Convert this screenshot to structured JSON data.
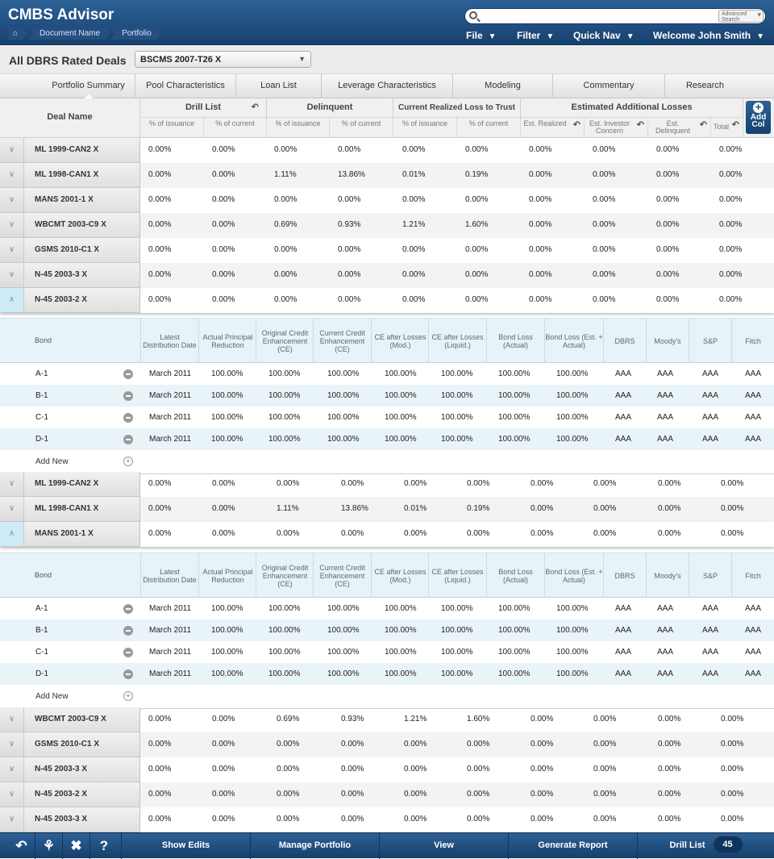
{
  "app": {
    "title": "CMBS Advisor"
  },
  "breadcrumbs": [
    "Document Name",
    "Portfolio"
  ],
  "search": {
    "placeholder": "",
    "advanced": "Advanced Search"
  },
  "menu": {
    "file": "File",
    "filter": "Filter",
    "quicknav": "Quick Nav",
    "welcome": "Welcome John Smith"
  },
  "deal": {
    "label": "All DBRS Rated Deals",
    "selected": "BSCMS 2007-T26 X"
  },
  "tabs": [
    "Portfolio Summary",
    "Pool Characteristics",
    "Loan List",
    "Leverage Characteristics",
    "Modeling",
    "Commentary",
    "Research"
  ],
  "grid": {
    "deal_name": "Deal Name",
    "groups": [
      "Drill List",
      "Delinquent",
      "Current Realized Loss to Trust",
      "Estimated Additional Losses"
    ],
    "subs": [
      "% of issuance",
      "% of current",
      "% of issuance",
      "% of current",
      "% of issuance",
      "% of current",
      "Est. Realized",
      "Est. Investor Concern",
      "Est. Delinquent",
      "Total"
    ],
    "add_col": "Add Col"
  },
  "bond_headers": {
    "bond": "Bond",
    "cols": [
      "Latest Distribution Date",
      "Actual Principal Reduction",
      "Original Credit Enhancement (CE)",
      "Current Credit Enhancement (CE)",
      "CE after Losses (Mod.)",
      "CE after Losses (Liquid.)",
      "Bond Loss (Actual)",
      "Bond Loss (Est. + Actual)",
      "DBRS",
      "Moody's",
      "S&P",
      "Fitch"
    ]
  },
  "deals_block1": [
    {
      "name": "ML 1999-CAN2 X",
      "v": [
        "0.00%",
        "0.00%",
        "0.00%",
        "0.00%",
        "0.00%",
        "0.00%",
        "0.00%",
        "0.00%",
        "0.00%",
        "0.00%"
      ]
    },
    {
      "name": "ML 1998-CAN1 X",
      "v": [
        "0.00%",
        "0.00%",
        "1.11%",
        "13.86%",
        "0.01%",
        "0.19%",
        "0.00%",
        "0.00%",
        "0.00%",
        "0.00%"
      ]
    },
    {
      "name": "MANS 2001-1 X",
      "v": [
        "0.00%",
        "0.00%",
        "0.00%",
        "0.00%",
        "0.00%",
        "0.00%",
        "0.00%",
        "0.00%",
        "0.00%",
        "0.00%"
      ]
    },
    {
      "name": "WBCMT 2003-C9 X",
      "v": [
        "0.00%",
        "0.00%",
        "0.69%",
        "0.93%",
        "1.21%",
        "1.60%",
        "0.00%",
        "0.00%",
        "0.00%",
        "0.00%"
      ]
    },
    {
      "name": "GSMS 2010-C1 X",
      "v": [
        "0.00%",
        "0.00%",
        "0.00%",
        "0.00%",
        "0.00%",
        "0.00%",
        "0.00%",
        "0.00%",
        "0.00%",
        "0.00%"
      ]
    },
    {
      "name": "N-45 2003-3 X",
      "v": [
        "0.00%",
        "0.00%",
        "0.00%",
        "0.00%",
        "0.00%",
        "0.00%",
        "0.00%",
        "0.00%",
        "0.00%",
        "0.00%"
      ]
    },
    {
      "name": "N-45 2003-2 X",
      "v": [
        "0.00%",
        "0.00%",
        "0.00%",
        "0.00%",
        "0.00%",
        "0.00%",
        "0.00%",
        "0.00%",
        "0.00%",
        "0.00%"
      ]
    }
  ],
  "bonds1": [
    {
      "name": "A-1",
      "v": [
        "March 2011",
        "100.00%",
        "100.00%",
        "100.00%",
        "100.00%",
        "100.00%",
        "100.00%",
        "100.00%",
        "AAA",
        "AAA",
        "AAA",
        "AAA"
      ]
    },
    {
      "name": "B-1",
      "v": [
        "March 2011",
        "100.00%",
        "100.00%",
        "100.00%",
        "100.00%",
        "100.00%",
        "100.00%",
        "100.00%",
        "AAA",
        "AAA",
        "AAA",
        "AAA"
      ]
    },
    {
      "name": "C-1",
      "v": [
        "March 2011",
        "100.00%",
        "100.00%",
        "100.00%",
        "100.00%",
        "100.00%",
        "100.00%",
        "100.00%",
        "AAA",
        "AAA",
        "AAA",
        "AAA"
      ]
    },
    {
      "name": "D-1",
      "v": [
        "March 2011",
        "100.00%",
        "100.00%",
        "100.00%",
        "100.00%",
        "100.00%",
        "100.00%",
        "100.00%",
        "AAA",
        "AAA",
        "AAA",
        "AAA"
      ]
    }
  ],
  "add_new": "Add New",
  "deals_block2": [
    {
      "name": "ML 1999-CAN2 X",
      "v": [
        "0.00%",
        "0.00%",
        "0.00%",
        "0.00%",
        "0.00%",
        "0.00%",
        "0.00%",
        "0.00%",
        "0.00%",
        "0.00%"
      ]
    },
    {
      "name": "ML 1998-CAN1 X",
      "v": [
        "0.00%",
        "0.00%",
        "1.11%",
        "13.86%",
        "0.01%",
        "0.19%",
        "0.00%",
        "0.00%",
        "0.00%",
        "0.00%"
      ]
    },
    {
      "name": "MANS 2001-1 X",
      "v": [
        "0.00%",
        "0.00%",
        "0.00%",
        "0.00%",
        "0.00%",
        "0.00%",
        "0.00%",
        "0.00%",
        "0.00%",
        "0.00%"
      ]
    }
  ],
  "bonds2": [
    {
      "name": "A-1",
      "v": [
        "March 2011",
        "100.00%",
        "100.00%",
        "100.00%",
        "100.00%",
        "100.00%",
        "100.00%",
        "100.00%",
        "AAA",
        "AAA",
        "AAA",
        "AAA"
      ]
    },
    {
      "name": "B-1",
      "v": [
        "March 2011",
        "100.00%",
        "100.00%",
        "100.00%",
        "100.00%",
        "100.00%",
        "100.00%",
        "100.00%",
        "AAA",
        "AAA",
        "AAA",
        "AAA"
      ]
    },
    {
      "name": "C-1",
      "v": [
        "March 2011",
        "100.00%",
        "100.00%",
        "100.00%",
        "100.00%",
        "100.00%",
        "100.00%",
        "100.00%",
        "AAA",
        "AAA",
        "AAA",
        "AAA"
      ]
    },
    {
      "name": "D-1",
      "v": [
        "March 2011",
        "100.00%",
        "100.00%",
        "100.00%",
        "100.00%",
        "100.00%",
        "100.00%",
        "100.00%",
        "AAA",
        "AAA",
        "AAA",
        "AAA"
      ]
    }
  ],
  "deals_block3": [
    {
      "name": "WBCMT 2003-C9 X",
      "v": [
        "0.00%",
        "0.00%",
        "0.69%",
        "0.93%",
        "1.21%",
        "1.60%",
        "0.00%",
        "0.00%",
        "0.00%",
        "0.00%"
      ]
    },
    {
      "name": "GSMS 2010-C1 X",
      "v": [
        "0.00%",
        "0.00%",
        "0.00%",
        "0.00%",
        "0.00%",
        "0.00%",
        "0.00%",
        "0.00%",
        "0.00%",
        "0.00%"
      ]
    },
    {
      "name": "N-45 2003-3 X",
      "v": [
        "0.00%",
        "0.00%",
        "0.00%",
        "0.00%",
        "0.00%",
        "0.00%",
        "0.00%",
        "0.00%",
        "0.00%",
        "0.00%"
      ]
    },
    {
      "name": "N-45 2003-2 X",
      "v": [
        "0.00%",
        "0.00%",
        "0.00%",
        "0.00%",
        "0.00%",
        "0.00%",
        "0.00%",
        "0.00%",
        "0.00%",
        "0.00%"
      ]
    },
    {
      "name": "N-45 2003-3 X",
      "v": [
        "0.00%",
        "0.00%",
        "0.00%",
        "0.00%",
        "0.00%",
        "0.00%",
        "0.00%",
        "0.00%",
        "0.00%",
        "0.00%"
      ]
    }
  ],
  "footer": {
    "show_edits": "Show Edits",
    "manage": "Manage Portfolio",
    "view": "View",
    "generate": "Generate Report",
    "drill": "Drill List",
    "drill_count": "45"
  },
  "icons": [
    "undo-icon",
    "pdf-icon",
    "excel-icon",
    "help-icon",
    "search-icon",
    "expand-icon",
    "collapse-icon",
    "remove-icon",
    "add-icon"
  ],
  "colors": {
    "header": "#1f4f82",
    "accent_bond": "#e6f3f8"
  }
}
